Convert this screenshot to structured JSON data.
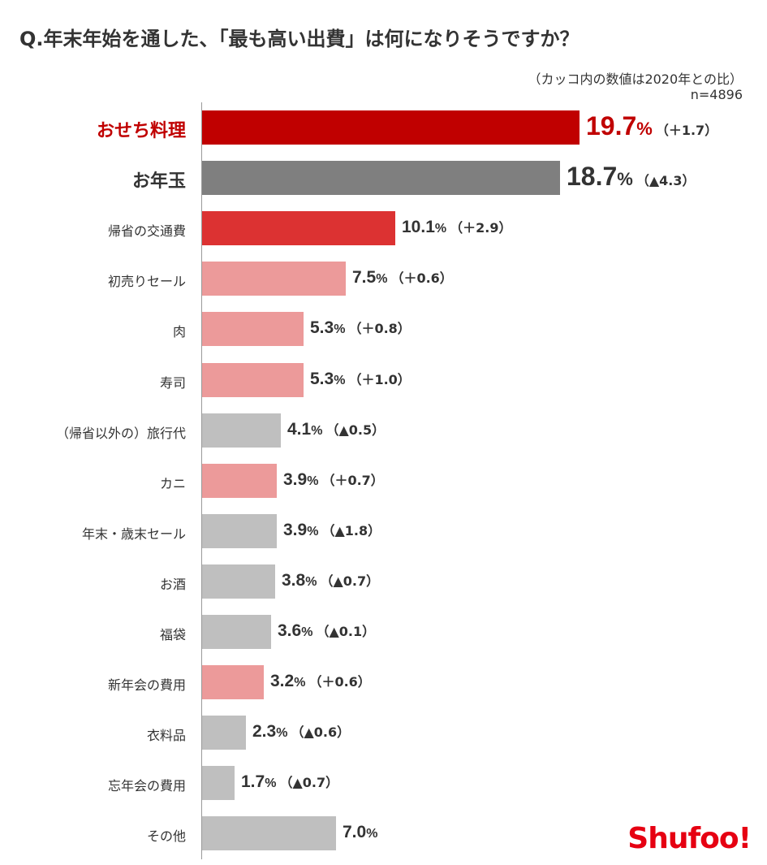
{
  "title": "Q.年末年始を通した、「最も高い出費」は何になりそうですか？",
  "note": "（カッコ内の数値は2020年との比）",
  "sample": "n=4896",
  "logo": "Shufoo!",
  "colors": {
    "top": "#c00000",
    "second": "#7f7f7f",
    "red": "#dc3232",
    "pink": "#ec9a9a",
    "gray": "#bfbfbf"
  },
  "chart_data": {
    "type": "bar",
    "orientation": "horizontal",
    "unit": "%",
    "categories": [
      "おせち料理",
      "お年玉",
      "帰省の交通費",
      "初売りセール",
      "肉",
      "寿司",
      "（帰省以外の）旅行代",
      "カニ",
      "年末・歳末セール",
      "お酒",
      "福袋",
      "新年会の費用",
      "衣料品",
      "忘年会の費用",
      "その他"
    ],
    "values": [
      19.7,
      18.7,
      10.1,
      7.5,
      5.3,
      5.3,
      4.1,
      3.9,
      3.9,
      3.8,
      3.6,
      3.2,
      2.3,
      1.7,
      7.0
    ],
    "value_labels": [
      "19.7",
      "18.7",
      "10.1",
      "7.5",
      "5.3",
      "5.3",
      "4.1",
      "3.9",
      "3.9",
      "3.8",
      "3.6",
      "3.2",
      "2.3",
      "1.7",
      "7.0"
    ],
    "changes": [
      "（＋1.7）",
      "（▲4.3）",
      "（＋2.9）",
      "（＋0.6）",
      "（＋0.8）",
      "（＋1.0）",
      "（▲0.5）",
      "（＋0.7）",
      "（▲1.8）",
      "（▲0.7）",
      "（▲0.1）",
      "（＋0.6）",
      "（▲0.6）",
      "（▲0.7）",
      ""
    ],
    "bar_colors": [
      "top",
      "second",
      "red",
      "pink",
      "pink",
      "pink",
      "gray",
      "pink",
      "gray",
      "gray",
      "gray",
      "pink",
      "gray",
      "gray",
      "gray"
    ],
    "xlim": [
      0,
      20
    ],
    "grid": false,
    "legend": "none"
  }
}
